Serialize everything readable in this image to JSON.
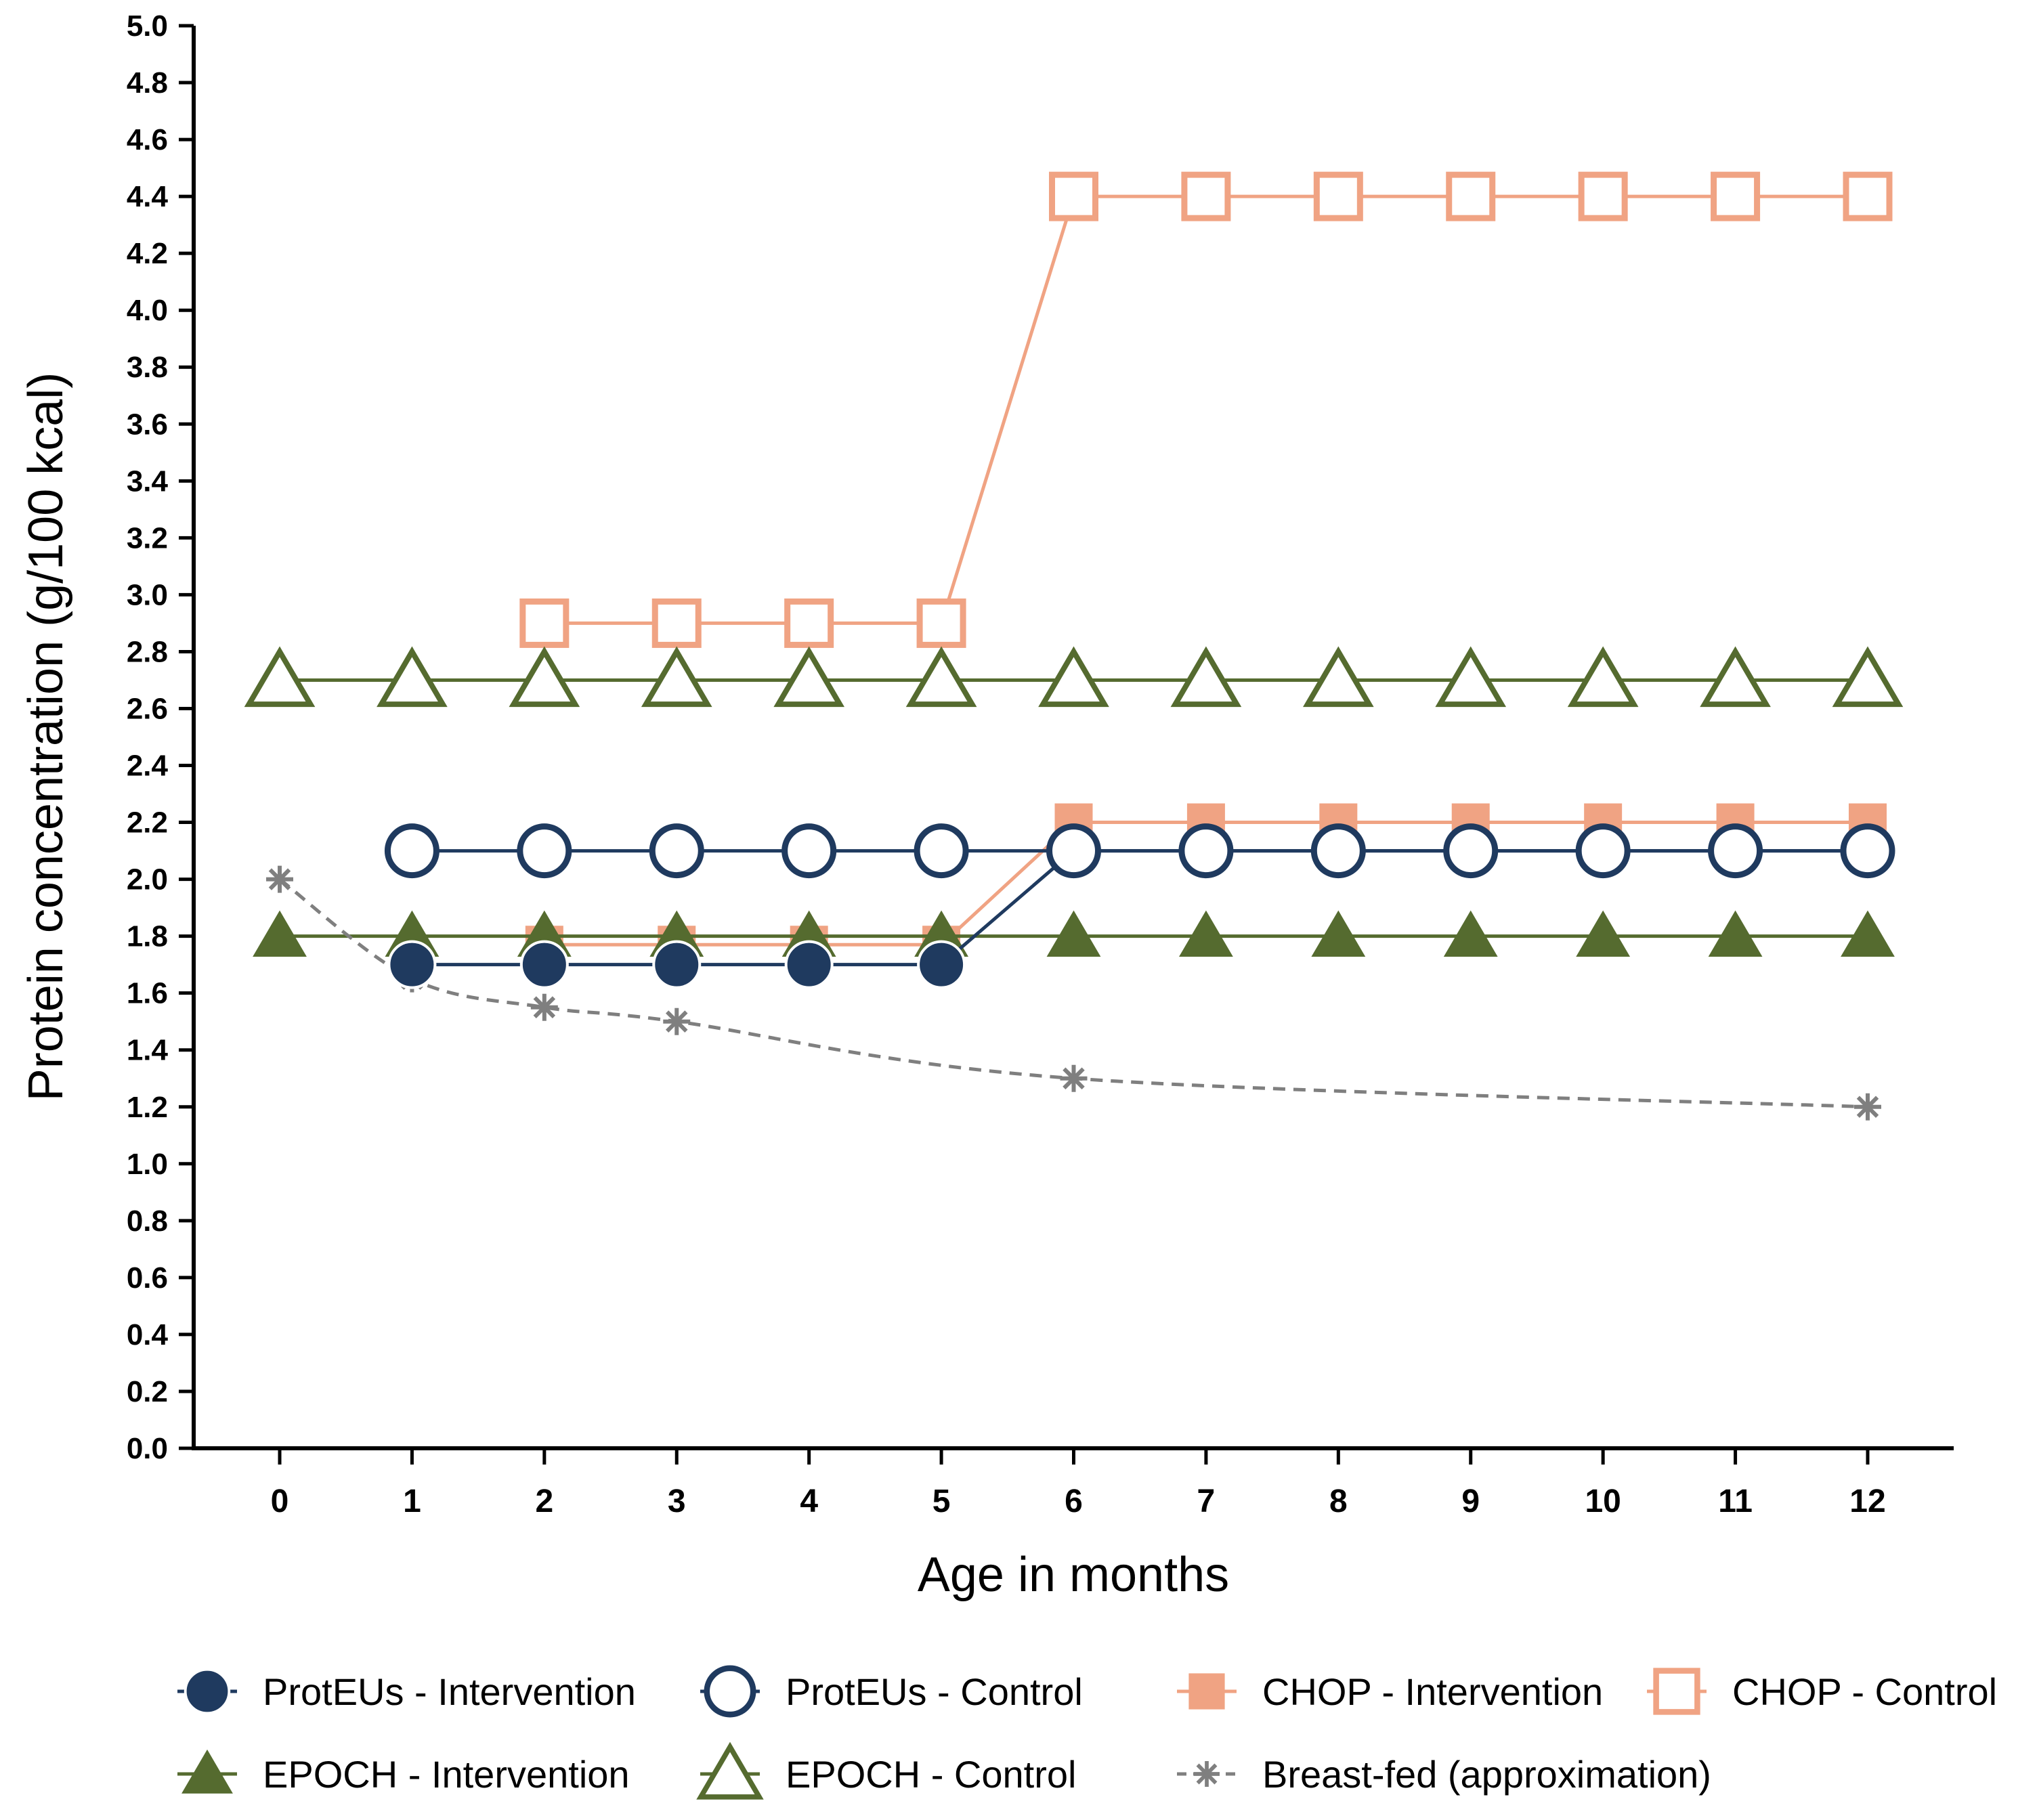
{
  "chart_data": {
    "type": "line",
    "title": "",
    "xlabel": "Age in months",
    "ylabel": "Protein concentration (g/100 kcal)",
    "xlim": [
      -0.65,
      12.65
    ],
    "ylim": [
      0,
      5.0
    ],
    "x_ticks": [
      "0",
      "1",
      "2",
      "3",
      "4",
      "5",
      "6",
      "7",
      "8",
      "9",
      "10",
      "11",
      "12"
    ],
    "y_ticks": [
      "0.0",
      "0.2",
      "0.4",
      "0.6",
      "0.8",
      "1.0",
      "1.2",
      "1.4",
      "1.6",
      "1.8",
      "2.0",
      "2.2",
      "2.4",
      "2.6",
      "2.8",
      "3.0",
      "3.2",
      "3.4",
      "3.6",
      "3.8",
      "4.0",
      "4.2",
      "4.4",
      "4.6",
      "4.8",
      "5.0"
    ],
    "grid": false,
    "legend_position": "bottom",
    "series": [
      {
        "name": "CHOP - Control",
        "marker": "square-open",
        "color": "#F0A383",
        "dashed": false,
        "x": [
          2,
          3,
          4,
          5,
          6,
          7,
          8,
          9,
          10,
          11,
          12
        ],
        "y": [
          2.9,
          2.9,
          2.9,
          2.9,
          4.4,
          4.4,
          4.4,
          4.4,
          4.4,
          4.4,
          4.4
        ]
      },
      {
        "name": "EPOCH - Control",
        "marker": "triangle-open",
        "color": "#556B2F",
        "dashed": false,
        "x": [
          0,
          1,
          2,
          3,
          4,
          5,
          6,
          7,
          8,
          9,
          10,
          11,
          12
        ],
        "y": [
          2.7,
          2.7,
          2.7,
          2.7,
          2.7,
          2.7,
          2.7,
          2.7,
          2.7,
          2.7,
          2.7,
          2.7,
          2.7
        ]
      },
      {
        "name": "CHOP - Intervention",
        "marker": "square-filled",
        "color": "#F0A383",
        "dashed": false,
        "x": [
          2,
          3,
          4,
          5,
          6,
          7,
          8,
          9,
          10,
          11,
          12
        ],
        "y": [
          1.77,
          1.77,
          1.77,
          1.77,
          2.2,
          2.2,
          2.2,
          2.2,
          2.2,
          2.2,
          2.2
        ]
      },
      {
        "name": "EPOCH - Intervention",
        "marker": "triangle-filled",
        "color": "#556B2F",
        "dashed": false,
        "x": [
          0,
          1,
          2,
          3,
          4,
          5,
          6,
          7,
          8,
          9,
          10,
          11,
          12
        ],
        "y": [
          1.8,
          1.8,
          1.8,
          1.8,
          1.8,
          1.8,
          1.8,
          1.8,
          1.8,
          1.8,
          1.8,
          1.8,
          1.8
        ]
      },
      {
        "name": "Breast-fed (approximation)",
        "marker": "asterisk",
        "color": "#7F7F7F",
        "dashed": true,
        "x": [
          0,
          1,
          2,
          3,
          6,
          12
        ],
        "y": [
          2.0,
          1.65,
          1.55,
          1.5,
          1.3,
          1.2
        ]
      },
      {
        "name": "ProtEUs - Intervention",
        "marker": "circle-filled",
        "color": "#1F3A5F",
        "dashed": false,
        "x": [
          1,
          2,
          3,
          4,
          5,
          6,
          7,
          8,
          9,
          10,
          11,
          12
        ],
        "y": [
          1.7,
          1.7,
          1.7,
          1.7,
          1.7,
          2.1,
          2.1,
          2.1,
          2.1,
          2.1,
          2.1,
          2.1
        ]
      },
      {
        "name": "ProtEUs - Control",
        "marker": "circle-open",
        "color": "#1F3A5F",
        "dashed": false,
        "x": [
          1,
          2,
          3,
          4,
          5,
          6,
          7,
          8,
          9,
          10,
          11,
          12
        ],
        "y": [
          2.1,
          2.1,
          2.1,
          2.1,
          2.1,
          2.1,
          2.1,
          2.1,
          2.1,
          2.1,
          2.1,
          2.1
        ]
      }
    ],
    "legend": [
      [
        "ProtEUs - Intervention",
        "ProtEUs - Control",
        "CHOP - Intervention",
        "CHOP - Control"
      ],
      [
        "EPOCH - Intervention",
        "EPOCH - Control",
        "Breast-fed (approximation)"
      ]
    ]
  }
}
